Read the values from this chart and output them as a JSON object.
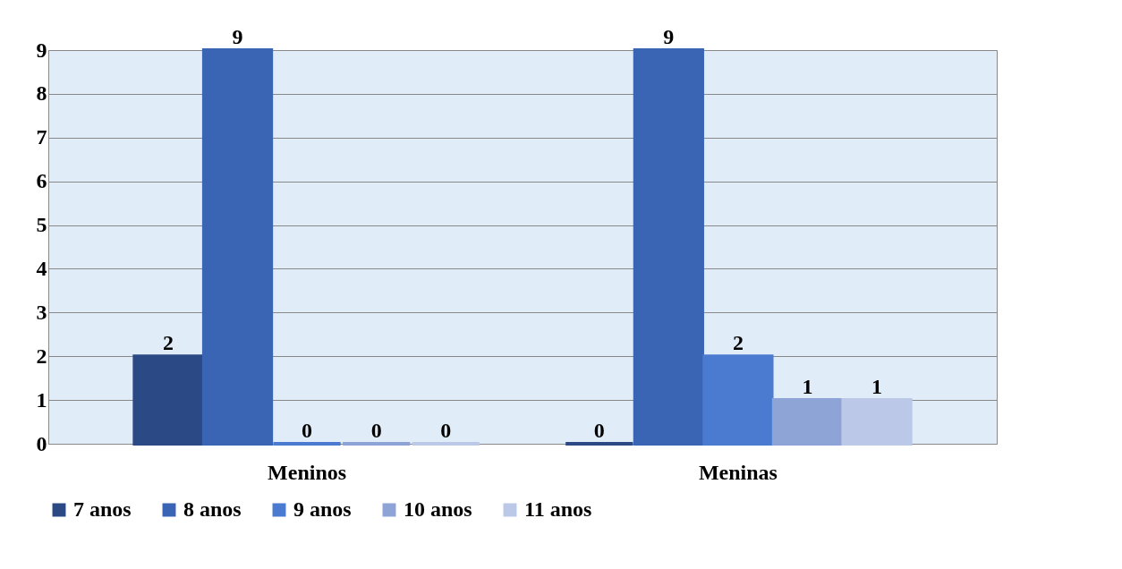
{
  "chart_data": {
    "type": "bar",
    "categories": [
      "Meninos",
      "Meninas"
    ],
    "series": [
      {
        "name": "7 anos",
        "color": "#2b4a85",
        "values": [
          2,
          0
        ]
      },
      {
        "name": "8 anos",
        "color": "#3a64b4",
        "values": [
          9,
          9
        ]
      },
      {
        "name": "9 anos",
        "color": "#4a7bd0",
        "values": [
          0,
          2
        ]
      },
      {
        "name": "10 anos",
        "color": "#8ea3d6",
        "values": [
          0,
          1
        ]
      },
      {
        "name": "11 anos",
        "color": "#bcc8e8",
        "values": [
          0,
          1
        ]
      }
    ],
    "ylim": [
      0,
      9
    ],
    "yticks": [
      0,
      1,
      2,
      3,
      4,
      5,
      6,
      7,
      8,
      9
    ],
    "grid": "y",
    "legend": "bottom",
    "data_labels": true
  }
}
